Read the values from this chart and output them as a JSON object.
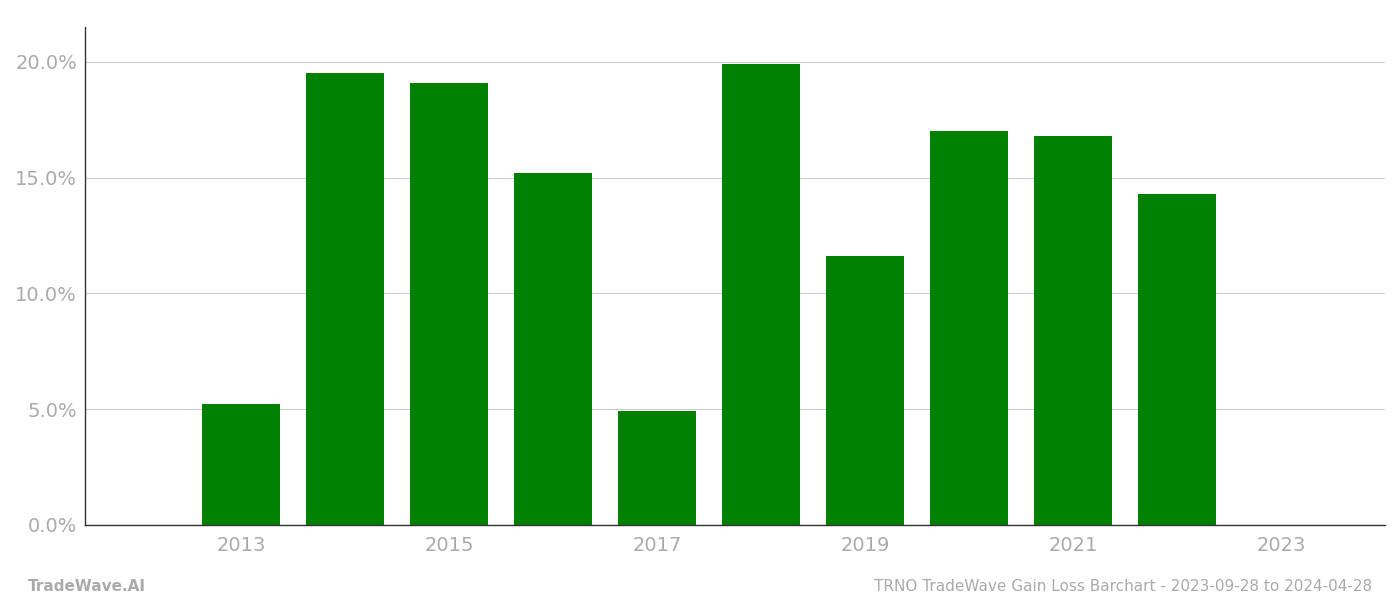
{
  "years": [
    2013,
    2014,
    2015,
    2016,
    2017,
    2018,
    2019,
    2020,
    2021,
    2022
  ],
  "values": [
    0.052,
    0.195,
    0.191,
    0.152,
    0.049,
    0.199,
    0.116,
    0.17,
    0.168,
    0.143
  ],
  "bar_color": "#008000",
  "background_color": "#ffffff",
  "ylim": [
    0,
    0.215
  ],
  "yticks": [
    0.0,
    0.05,
    0.1,
    0.15,
    0.2
  ],
  "xlim": [
    2011.5,
    2024.0
  ],
  "xtick_positions": [
    2013,
    2015,
    2017,
    2019,
    2021,
    2023
  ],
  "footer_left": "TradeWave.AI",
  "footer_right": "TRNO TradeWave Gain Loss Barchart - 2023-09-28 to 2024-04-28",
  "footer_fontsize": 11,
  "tick_label_color": "#aaaaaa",
  "axis_color": "#333333",
  "grid_color": "#cccccc",
  "bar_width": 0.75
}
